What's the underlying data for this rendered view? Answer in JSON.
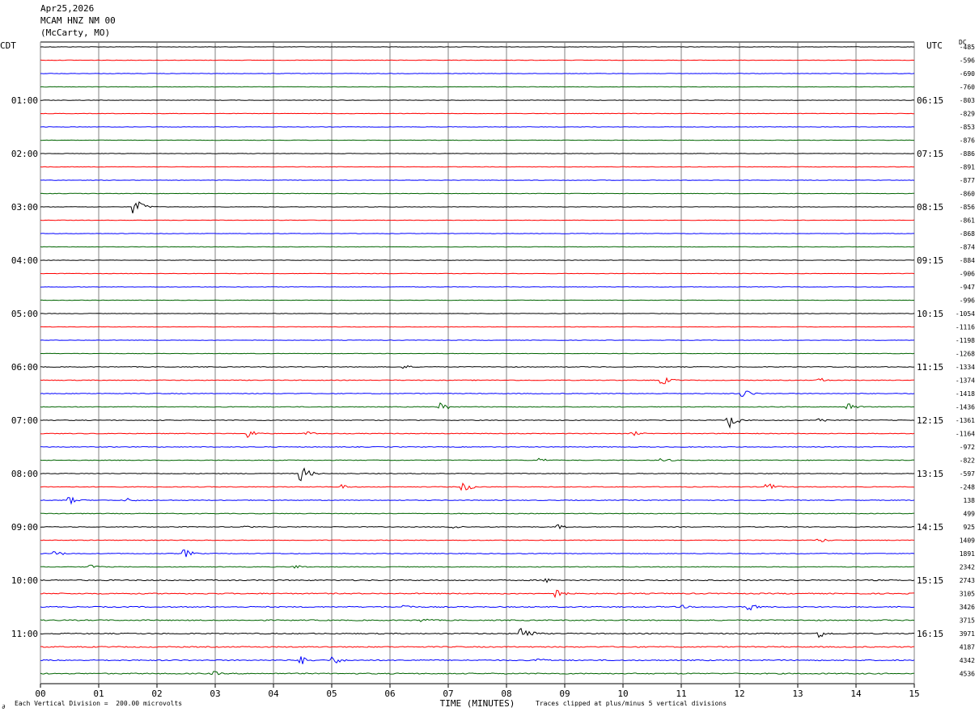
{
  "header": {
    "date": "Apr25,2026",
    "station": "MCAM HNZ NM 00",
    "location": "(McCarty, MO)"
  },
  "left_tz": "CDT",
  "right_tz": "UTC",
  "dc_label": "DC",
  "footer": {
    "scale_note": "Each Vertical Division =  200.00 microvolts",
    "clip_note": "Traces clipped at plus/minus 5 vertical divisions",
    "logo_glyph": "∂"
  },
  "colors": {
    "black": "#000000",
    "red": "#ff0000",
    "blue": "#0000ff",
    "green": "#006400",
    "grid": "#808080"
  },
  "chart_data": {
    "type": "line",
    "title": "MCAM HNZ NM 00",
    "xlabel": "TIME (MINUTES)",
    "ylabel": "",
    "x_ticks": [
      "00",
      "01",
      "02",
      "03",
      "04",
      "05",
      "06",
      "07",
      "08",
      "09",
      "10",
      "11",
      "12",
      "13",
      "14",
      "15"
    ],
    "xlim": [
      0,
      15
    ],
    "grid": true,
    "left_hour_labels": [
      "01:00",
      "02:00",
      "03:00",
      "04:00",
      "05:00",
      "06:00",
      "07:00",
      "08:00",
      "09:00",
      "10:00",
      "11:00"
    ],
    "right_hour_labels": [
      "06:15",
      "07:15",
      "08:15",
      "09:15",
      "10:15",
      "11:15",
      "12:15",
      "13:15",
      "14:15",
      "15:15",
      "16:15"
    ],
    "trace_color_cycle": [
      "black",
      "red",
      "blue",
      "green"
    ],
    "dc_offsets": [
      -485,
      -596,
      -690,
      -760,
      -803,
      -829,
      -853,
      -876,
      -886,
      -891,
      -877,
      -860,
      -856,
      -861,
      -868,
      -874,
      -884,
      -906,
      -947,
      -996,
      -1054,
      -1116,
      -1198,
      -1268,
      -1334,
      -1374,
      -1418,
      -1436,
      -1361,
      -1164,
      -972,
      -822,
      -597,
      -248,
      138,
      499,
      925,
      1409,
      1891,
      2342,
      2743,
      3105,
      3426,
      3715,
      3971,
      4187,
      4342,
      4536
    ],
    "events": [
      {
        "row": 12,
        "minute": 1.65,
        "amplitude": "large"
      },
      {
        "row": 24,
        "minute": 6.25,
        "amplitude": "small"
      },
      {
        "row": 25,
        "minute": 10.7,
        "amplitude": "medium"
      },
      {
        "row": 25,
        "minute": 13.4,
        "amplitude": "small"
      },
      {
        "row": 26,
        "minute": 12.1,
        "amplitude": "medium"
      },
      {
        "row": 27,
        "minute": 6.9,
        "amplitude": "medium"
      },
      {
        "row": 27,
        "minute": 13.9,
        "amplitude": "medium"
      },
      {
        "row": 28,
        "minute": 11.85,
        "amplitude": "large"
      },
      {
        "row": 28,
        "minute": 13.4,
        "amplitude": "small"
      },
      {
        "row": 29,
        "minute": 3.6,
        "amplitude": "medium"
      },
      {
        "row": 29,
        "minute": 4.6,
        "amplitude": "small"
      },
      {
        "row": 29,
        "minute": 10.2,
        "amplitude": "small"
      },
      {
        "row": 31,
        "minute": 8.6,
        "amplitude": "small"
      },
      {
        "row": 31,
        "minute": 10.7,
        "amplitude": "small"
      },
      {
        "row": 32,
        "minute": 4.5,
        "amplitude": "large"
      },
      {
        "row": 33,
        "minute": 5.2,
        "amplitude": "small"
      },
      {
        "row": 33,
        "minute": 7.3,
        "amplitude": "medium"
      },
      {
        "row": 33,
        "minute": 12.5,
        "amplitude": "medium"
      },
      {
        "row": 34,
        "minute": 0.5,
        "amplitude": "medium"
      },
      {
        "row": 34,
        "minute": 1.5,
        "amplitude": "small"
      },
      {
        "row": 36,
        "minute": 3.5,
        "amplitude": "small"
      },
      {
        "row": 36,
        "minute": 7.1,
        "amplitude": "small"
      },
      {
        "row": 36,
        "minute": 8.9,
        "amplitude": "small"
      },
      {
        "row": 37,
        "minute": 13.4,
        "amplitude": "small"
      },
      {
        "row": 38,
        "minute": 2.5,
        "amplitude": "medium"
      },
      {
        "row": 38,
        "minute": 0.3,
        "amplitude": "small"
      },
      {
        "row": 39,
        "minute": 0.9,
        "amplitude": "small"
      },
      {
        "row": 39,
        "minute": 4.4,
        "amplitude": "small"
      },
      {
        "row": 40,
        "minute": 8.7,
        "amplitude": "small"
      },
      {
        "row": 41,
        "minute": 8.9,
        "amplitude": "medium"
      },
      {
        "row": 42,
        "minute": 6.3,
        "amplitude": "small"
      },
      {
        "row": 42,
        "minute": 11.0,
        "amplitude": "small"
      },
      {
        "row": 42,
        "minute": 12.2,
        "amplitude": "medium"
      },
      {
        "row": 43,
        "minute": 6.6,
        "amplitude": "small"
      },
      {
        "row": 44,
        "minute": 8.3,
        "amplitude": "large"
      },
      {
        "row": 44,
        "minute": 13.4,
        "amplitude": "medium"
      },
      {
        "row": 46,
        "minute": 4.5,
        "amplitude": "medium"
      },
      {
        "row": 46,
        "minute": 5.05,
        "amplitude": "medium"
      },
      {
        "row": 46,
        "minute": 8.6,
        "amplitude": "small"
      },
      {
        "row": 47,
        "minute": 3.0,
        "amplitude": "small"
      }
    ]
  }
}
